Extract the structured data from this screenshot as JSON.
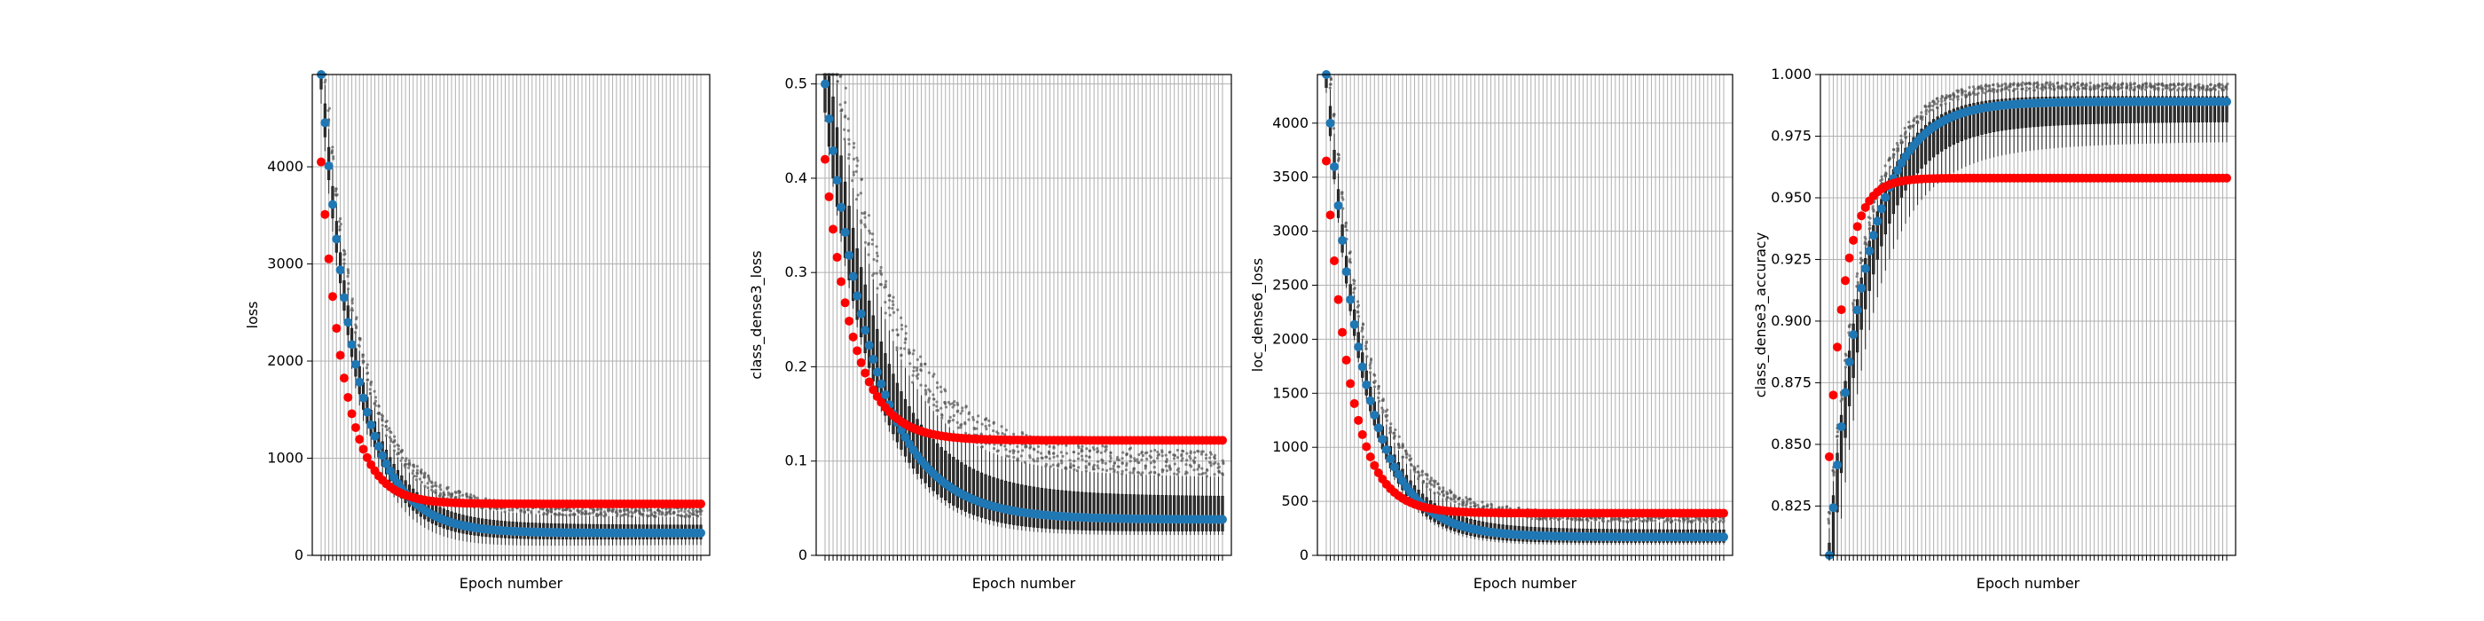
{
  "chart_data": [
    {
      "type": "line",
      "xlabel": "Epoch number",
      "ylabel": "loss",
      "ylim": [
        0,
        4950
      ],
      "yticks": [
        0,
        1000,
        2000,
        3000,
        4000
      ],
      "grid": true,
      "epochs": 100,
      "series": [
        {
          "color": "#1f77b4",
          "start": 4950,
          "end": 230,
          "tau": 9
        },
        {
          "color": "#ff0000",
          "start": 4050,
          "end": 530,
          "tau": 6
        }
      ],
      "box": {
        "q1_offset": -150,
        "q3_offset": 200,
        "wlo_offset": -300,
        "whi_offset": 400
      }
    },
    {
      "type": "line",
      "xlabel": "Epoch number",
      "ylabel": "class_dense3_loss",
      "ylim": [
        0,
        0.51
      ],
      "yticks": [
        0.0,
        0.1,
        0.2,
        0.3,
        0.4,
        0.5
      ],
      "grid": true,
      "epochs": 100,
      "series": [
        {
          "color": "#1f77b4",
          "start": 0.5,
          "end": 0.038,
          "tau": 12
        },
        {
          "color": "#ff0000",
          "start": 0.42,
          "end": 0.122,
          "tau": 7
        }
      ],
      "box": {
        "q1_offset": -0.03,
        "q3_offset": 0.06,
        "wlo_offset": -0.04,
        "whi_offset": 0.11
      }
    },
    {
      "type": "line",
      "xlabel": "Epoch number",
      "ylabel": "loc_dense6_loss",
      "ylim": [
        0,
        4450
      ],
      "yticks": [
        0,
        500,
        1000,
        1500,
        2000,
        2500,
        3000,
        3500,
        4000
      ],
      "grid": true,
      "epochs": 100,
      "series": [
        {
          "color": "#1f77b4",
          "start": 4450,
          "end": 170,
          "tau": 9
        },
        {
          "color": "#ff0000",
          "start": 3650,
          "end": 390,
          "tau": 6
        }
      ],
      "box": {
        "q1_offset": -120,
        "q3_offset": 160,
        "wlo_offset": -170,
        "whi_offset": 320
      }
    },
    {
      "type": "line",
      "xlabel": "Epoch number",
      "ylabel": "class_dense3_accuracy",
      "ylim": [
        0.805,
        1.0
      ],
      "yticks": [
        0.825,
        0.85,
        0.875,
        0.9,
        0.925,
        0.95,
        0.975,
        1.0
      ],
      "ytick_labels": [
        "0.825",
        "0.850",
        "0.875",
        "0.900",
        "0.925",
        "0.950",
        "0.975",
        "1.000"
      ],
      "grid": true,
      "epochs": 100,
      "series": [
        {
          "color": "#1f77b4",
          "start": 0.805,
          "end": 0.989,
          "tau": 9
        },
        {
          "color": "#ff0000",
          "start": 0.845,
          "end": 0.958,
          "tau": 4
        }
      ],
      "box": {
        "q1_offset": -0.02,
        "q3_offset": 0.005,
        "wlo_offset": -0.04,
        "whi_offset": 0.011
      }
    }
  ]
}
